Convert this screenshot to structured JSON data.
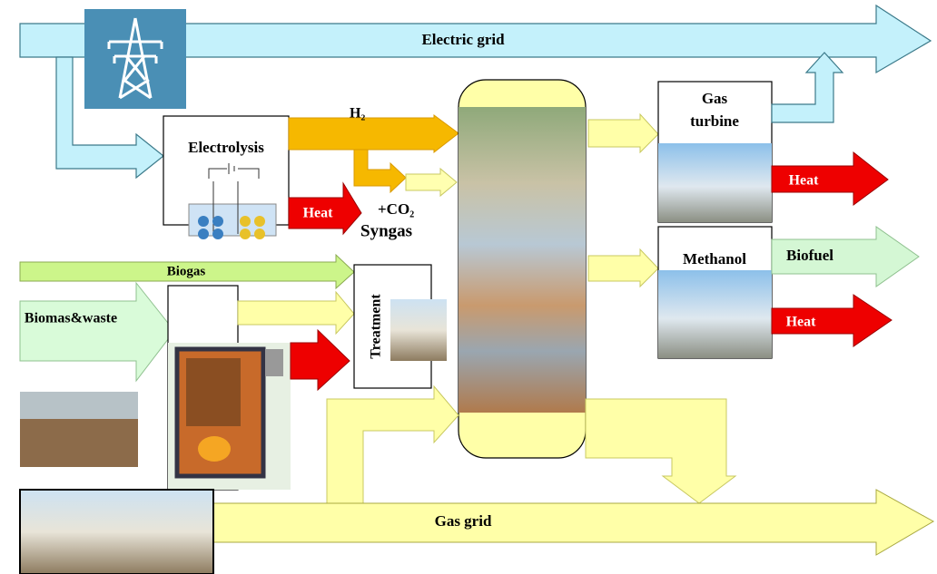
{
  "arrows": {
    "electric_grid": "Electric grid",
    "h2": "H₂",
    "co2": "+CO₂",
    "syngas": "Syngas",
    "biogas": "Biogas",
    "biomass": "Biomas&waste",
    "biofuel": "Biofuel",
    "gas_grid": "Gas grid"
  },
  "boxes": {
    "electrolysis": "Electrolysis",
    "treatment": "Treatment",
    "gas_turbine": [
      "Gas",
      "turbine"
    ],
    "methanol": "Methanol"
  },
  "heat_labels": [
    "Heat",
    "Heat",
    "Heat"
  ]
}
